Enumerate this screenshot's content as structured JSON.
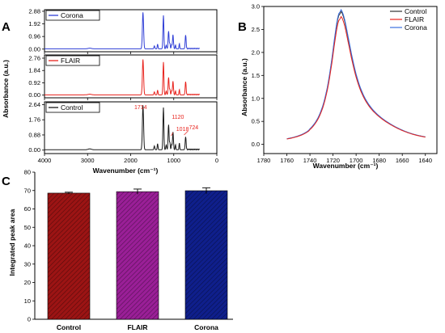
{
  "panel_labels": {
    "a": "A",
    "b": "B",
    "c": "C"
  },
  "chart_data": [
    {
      "panel": "A",
      "type": "line",
      "xlabel": "Wavenumber (cm⁻¹)",
      "ylabel": "Absorbance (a.u.)",
      "xlim": [
        4000,
        0
      ],
      "x_ticks": [
        "4000",
        "3000",
        "2000",
        "1000",
        "0"
      ],
      "grid": false,
      "subplots": [
        {
          "name": "Corona",
          "color": "#2f3ed6",
          "ylim": [
            -0.2,
            3.0
          ],
          "y_ticks": [
            "2.88",
            "1.92",
            "0.96",
            "0.00"
          ],
          "peaks": [
            [
              1714,
              2.78
            ],
            [
              1240,
              2.55
            ],
            [
              1120,
              1.34
            ],
            [
              1018,
              1.08
            ],
            [
              724,
              1.05
            ]
          ]
        },
        {
          "name": "FLAIR",
          "color": "#e8231d",
          "ylim": [
            -0.2,
            3.0
          ],
          "y_ticks": [
            "2.76",
            "1.84",
            "0.92",
            "0.00"
          ],
          "peaks": [
            [
              1714,
              2.65
            ],
            [
              1240,
              2.45
            ],
            [
              1120,
              1.3
            ],
            [
              1018,
              1.02
            ],
            [
              724,
              0.98
            ]
          ]
        },
        {
          "name": "Control",
          "color": "#1a1a1a",
          "ylim": [
            -0.2,
            2.8
          ],
          "y_ticks": [
            "2.64",
            "1.76",
            "0.88",
            "0.00"
          ],
          "peaks": [
            [
              1714,
              2.58
            ],
            [
              1240,
              2.45
            ],
            [
              1120,
              1.45
            ],
            [
              1018,
              1.03
            ],
            [
              724,
              0.75
            ]
          ]
        }
      ],
      "annotations": [
        "1714",
        "1120",
        "1018",
        "724"
      ]
    },
    {
      "panel": "B",
      "type": "line",
      "xlabel": "Wavenumber (cm⁻¹)",
      "ylabel": "Absorbance (a.u.)",
      "xlim": [
        1780,
        1630
      ],
      "ylim": [
        -0.2,
        3.0
      ],
      "x_ticks": [
        "1780",
        "1760",
        "1740",
        "1720",
        "1700",
        "1680",
        "1660",
        "1640"
      ],
      "y_ticks": [
        "0.0",
        "0.5",
        "1.0",
        "1.5",
        "2.0",
        "2.5",
        "3.0"
      ],
      "legend_position": "top-right",
      "series": [
        {
          "name": "Control",
          "color": "#333333",
          "peak": 2.73
        },
        {
          "name": "FLAIR",
          "color": "#e8231d",
          "peak": 2.62
        },
        {
          "name": "Corona",
          "color": "#3a6fe0",
          "peak": 2.77
        }
      ],
      "x_start": 1760,
      "x_end": 1640,
      "peak_x": 1714
    },
    {
      "panel": "C",
      "type": "bar",
      "ylabel": "Integrated peak area",
      "ylim": [
        0,
        80
      ],
      "y_ticks": [
        "0",
        "10",
        "20",
        "30",
        "40",
        "50",
        "60",
        "70",
        "80"
      ],
      "categories": [
        "Control",
        "FLAIR",
        "Corona"
      ],
      "values": [
        68.6,
        69.4,
        69.9
      ],
      "errors": [
        0.5,
        1.4,
        1.6
      ],
      "colors": [
        "#9c1414",
        "#9a1f97",
        "#0f1f8c"
      ]
    }
  ]
}
